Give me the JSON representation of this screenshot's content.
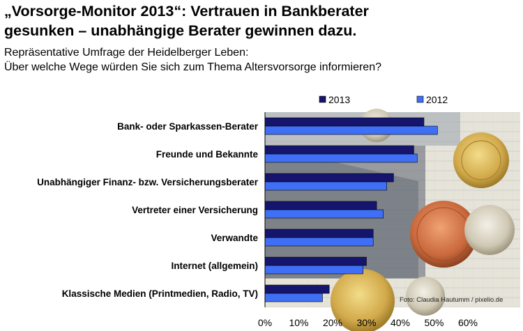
{
  "header": {
    "title_line1": "„Vorsorge-Monitor 2013“: Vertrauen in Bankberater",
    "title_line2": "gesunken – unabhängige Berater gewinnen dazu.",
    "subtitle_line1": "Repräsentative Umfrage der Heidelberger Leben:",
    "subtitle_line2": "Über welche Wege würden Sie sich zum Thema Altersvorsorge informieren?"
  },
  "photo_credit": "Foto: Claudia Hautumm / pixelio.de",
  "colors": {
    "series_2013": "#15156e",
    "series_2012": "#3f6ff5"
  },
  "chart_data": {
    "type": "bar",
    "orientation": "horizontal",
    "categories": [
      "Bank- oder Sparkassen-Berater",
      "Freunde und Bekannte",
      "Unabhängiger Finanz- bzw. Versicherungsberater",
      "Vertreter einer Versicherung",
      "Verwandte",
      "Internet (allgemein)",
      "Klassische Medien (Printmedien, Radio, TV)"
    ],
    "series": [
      {
        "name": "2013",
        "values": [
          47,
          44,
          38,
          33,
          32,
          30,
          19
        ]
      },
      {
        "name": "2012",
        "values": [
          51,
          45,
          36,
          35,
          32,
          29,
          17
        ]
      }
    ],
    "xlim": [
      0,
      60
    ],
    "xticks": [
      "0%",
      "10%",
      "20%",
      "30%",
      "40%",
      "50%",
      "60%"
    ],
    "legend_position": "top",
    "grid": false
  }
}
